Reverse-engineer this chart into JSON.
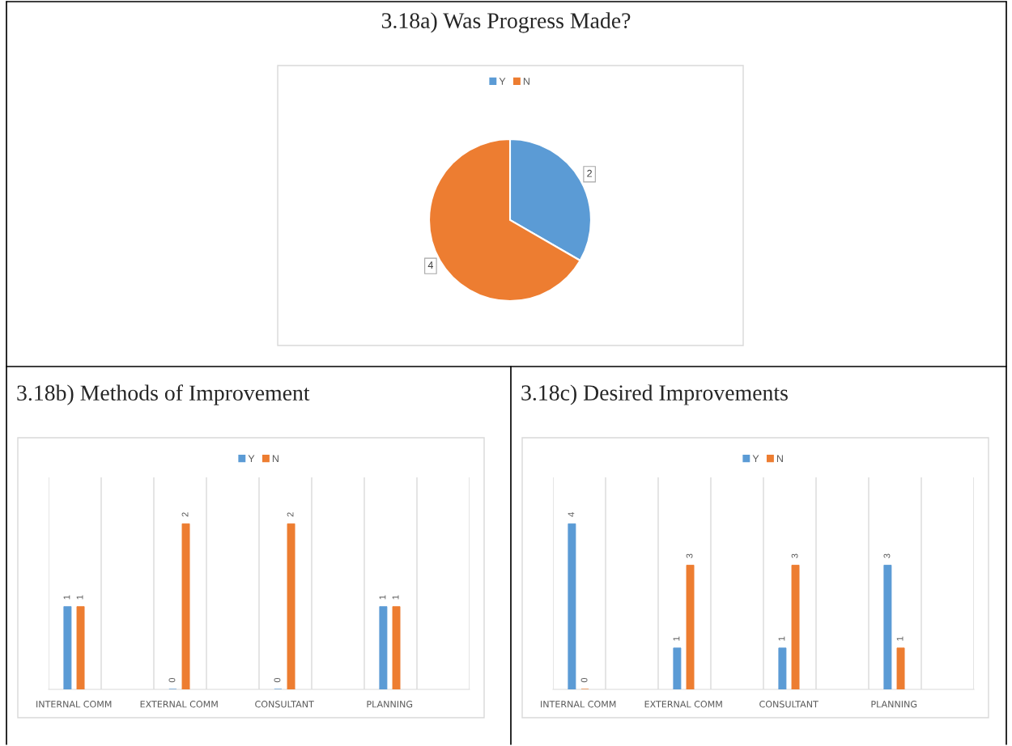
{
  "chart_data": [
    {
      "type": "pie",
      "title": "3.18a) Was Progress Made?",
      "categories": [
        "Y",
        "N"
      ],
      "values": [
        2,
        4
      ],
      "colors": [
        "#5b9bd5",
        "#ed7d31"
      ],
      "data_labels": true,
      "legend": "top"
    },
    {
      "type": "bar",
      "title": "3.18b) Methods of Improvement",
      "categories": [
        "INTERNAL COMM",
        "EXTERNAL COMM",
        "CONSULTANT",
        "PLANNING"
      ],
      "series": [
        {
          "name": "Y",
          "color": "#5b9bd5",
          "values": [
            1,
            0,
            0,
            1
          ]
        },
        {
          "name": "N",
          "color": "#ed7d31",
          "values": [
            1,
            2,
            2,
            1
          ]
        }
      ],
      "data_labels": true,
      "legend": "top",
      "grid": "x"
    },
    {
      "type": "bar",
      "title": "3.18c) Desired Improvements",
      "categories": [
        "INTERNAL COMM",
        "EXTERNAL COMM",
        "CONSULTANT",
        "PLANNING"
      ],
      "series": [
        {
          "name": "Y",
          "color": "#5b9bd5",
          "values": [
            4,
            1,
            1,
            3
          ]
        },
        {
          "name": "N",
          "color": "#ed7d31",
          "values": [
            0,
            3,
            3,
            1
          ]
        }
      ],
      "data_labels": true,
      "legend": "top",
      "grid": "x"
    }
  ]
}
